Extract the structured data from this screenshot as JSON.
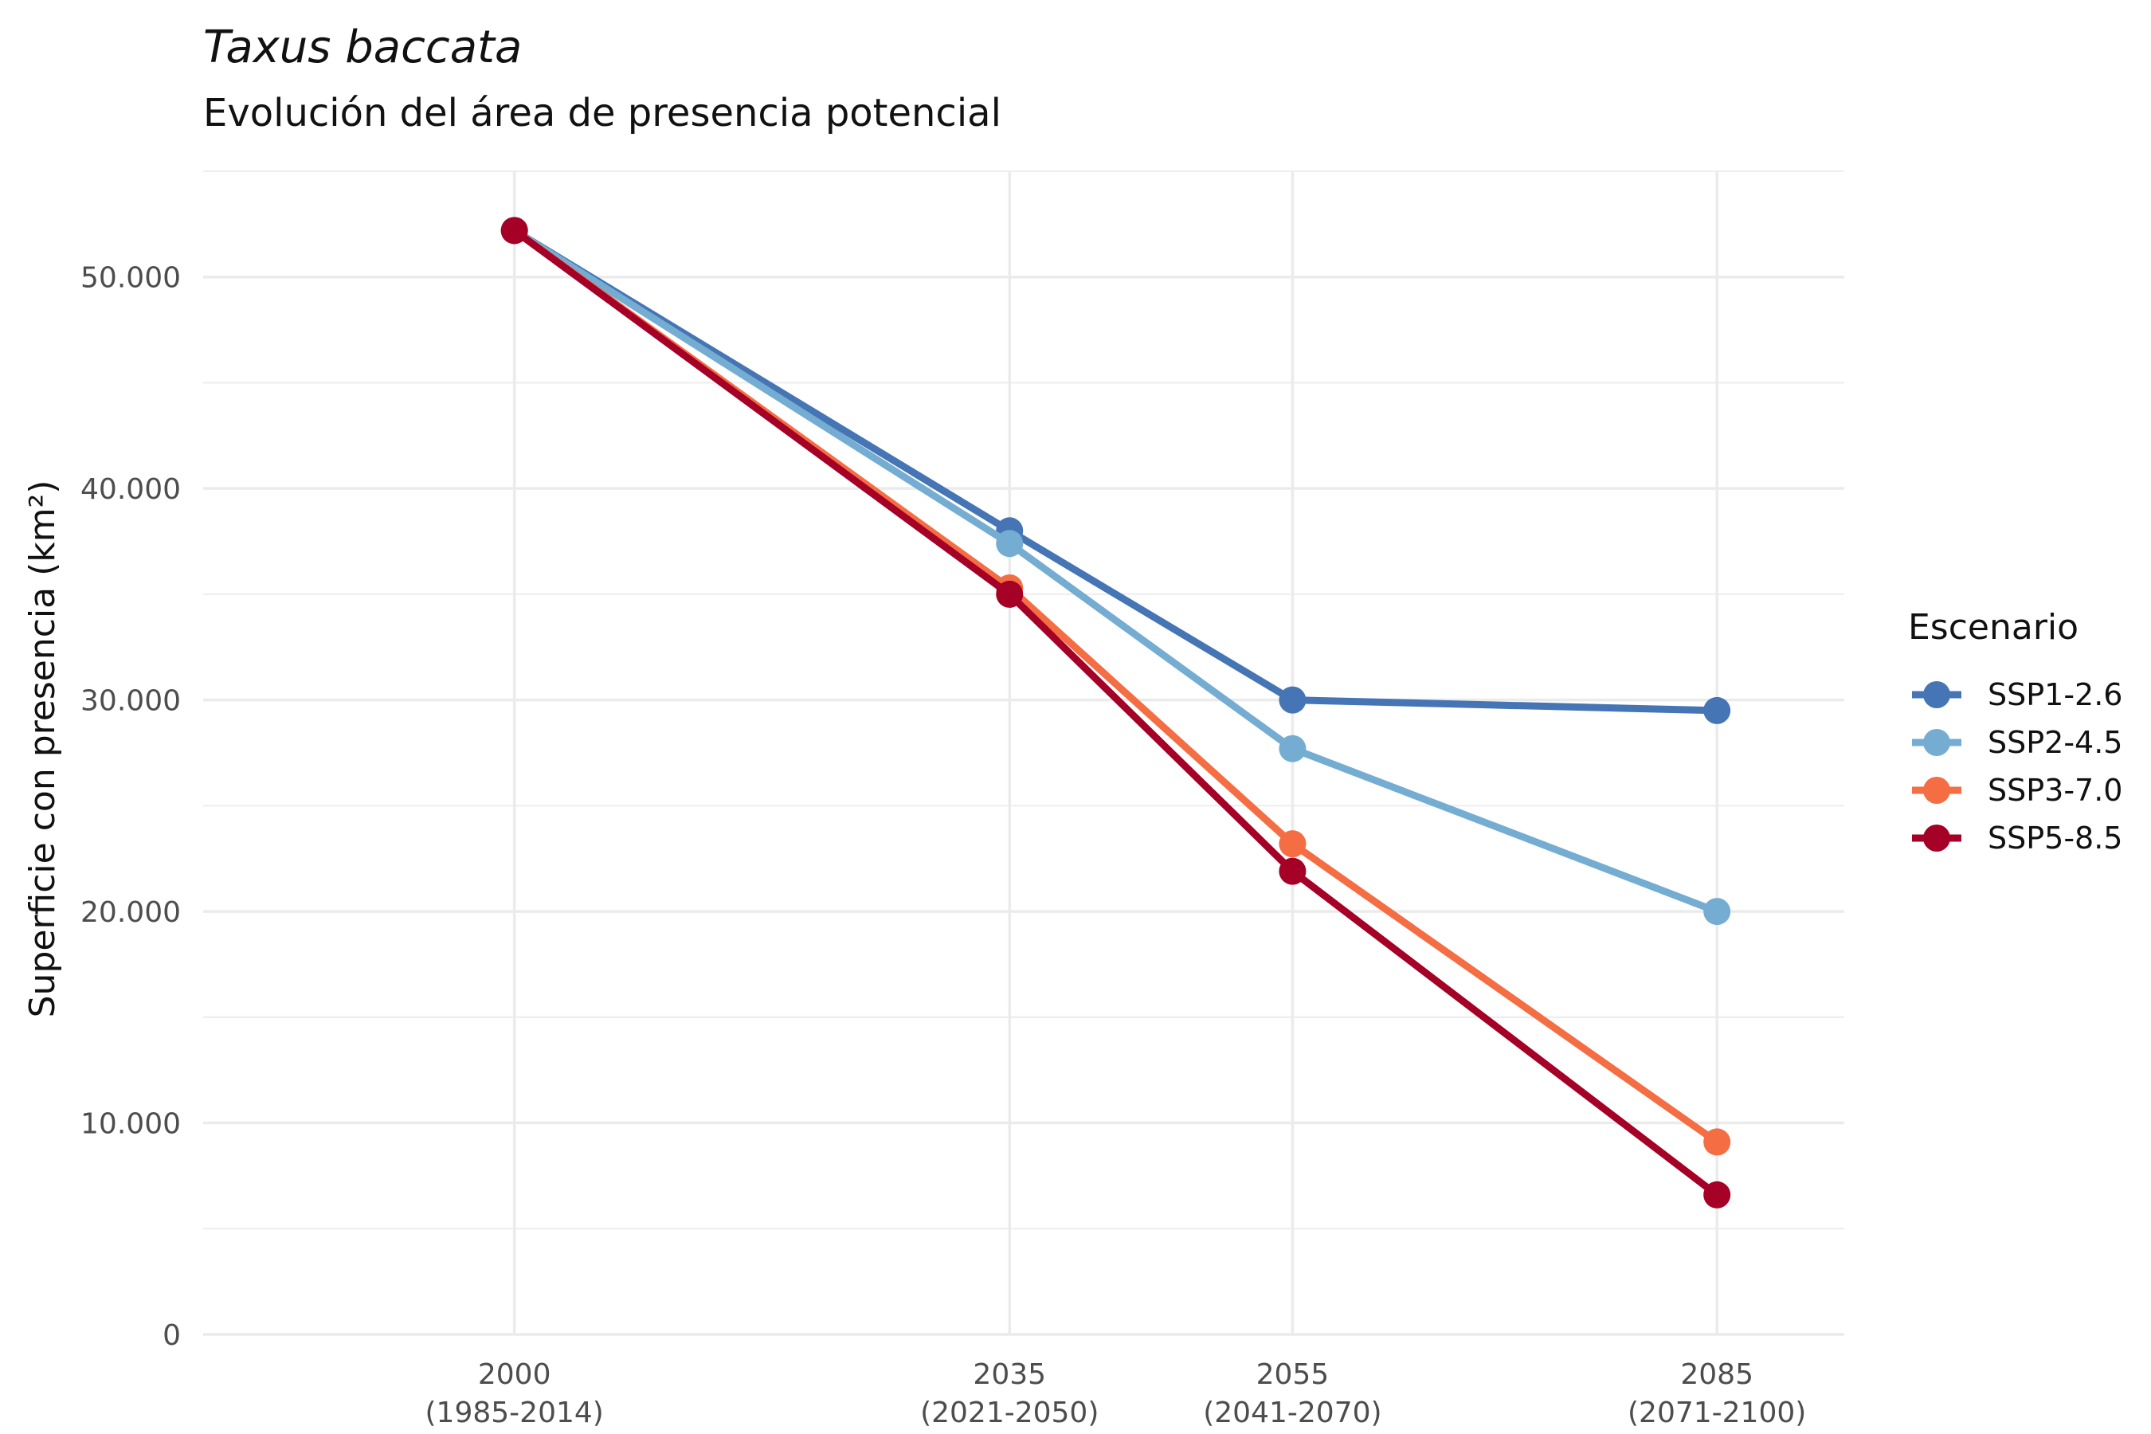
{
  "chart_data": {
    "type": "line",
    "title": "Taxus baccata",
    "subtitle": "Evolución del área de presencia potencial",
    "ylabel": "Superficie con presencia (km²)",
    "xlabel": "",
    "x": [
      2000,
      2035,
      2055,
      2085
    ],
    "x_tick_labels": [
      {
        "year": "2000",
        "period": "(1985-2014)"
      },
      {
        "year": "2035",
        "period": "(2021-2050)"
      },
      {
        "year": "2055",
        "period": "(2041-2070)"
      },
      {
        "year": "2085",
        "period": "(2071-2100)"
      }
    ],
    "xlim": [
      1978,
      2094
    ],
    "ylim": [
      0,
      55000
    ],
    "y_ticks": [
      0,
      10000,
      20000,
      30000,
      40000,
      50000
    ],
    "y_tick_labels": [
      "0",
      "10.000",
      "20.000",
      "30.000",
      "40.000",
      "50.000"
    ],
    "grid": true,
    "legend": {
      "title": "Escenario",
      "placement": "right"
    },
    "series": [
      {
        "name": "SSP1-2.6",
        "color": "#4575b4",
        "values": [
          52200,
          38000,
          30000,
          29500
        ]
      },
      {
        "name": "SSP2-4.5",
        "color": "#74add1",
        "values": [
          52200,
          37400,
          27700,
          20000
        ]
      },
      {
        "name": "SSP3-7.0",
        "color": "#f46d43",
        "values": [
          52200,
          35300,
          23200,
          9100
        ]
      },
      {
        "name": "SSP5-8.5",
        "color": "#a50026",
        "values": [
          52200,
          35000,
          21900,
          6600
        ]
      }
    ]
  }
}
